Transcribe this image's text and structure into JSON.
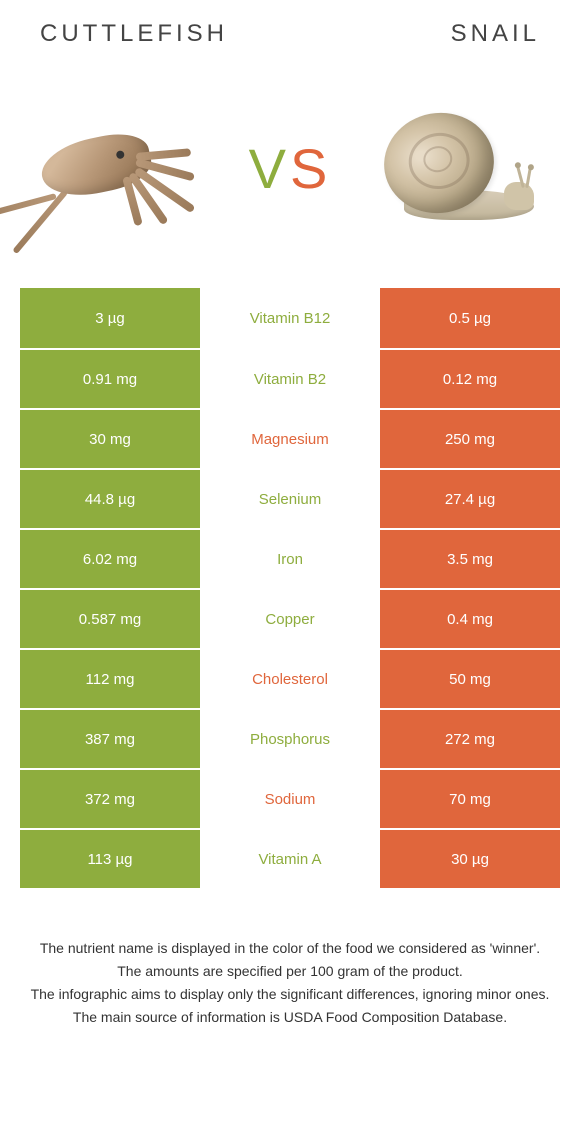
{
  "header": {
    "left_title": "Cuttlefish",
    "right_title": "Snail"
  },
  "vs_label": {
    "v": "V",
    "s": "S"
  },
  "colors": {
    "left": "#8ead3e",
    "right": "#e0663c",
    "background": "#ffffff",
    "text_white": "#ffffff"
  },
  "table": {
    "type": "comparison-table",
    "rows": [
      {
        "left": "3 µg",
        "nutrient": "Vitamin B12",
        "right": "0.5 µg",
        "winner": "left"
      },
      {
        "left": "0.91 mg",
        "nutrient": "Vitamin B2",
        "right": "0.12 mg",
        "winner": "left"
      },
      {
        "left": "30 mg",
        "nutrient": "Magnesium",
        "right": "250 mg",
        "winner": "right"
      },
      {
        "left": "44.8 µg",
        "nutrient": "Selenium",
        "right": "27.4 µg",
        "winner": "left"
      },
      {
        "left": "6.02 mg",
        "nutrient": "Iron",
        "right": "3.5 mg",
        "winner": "left"
      },
      {
        "left": "0.587 mg",
        "nutrient": "Copper",
        "right": "0.4 mg",
        "winner": "left"
      },
      {
        "left": "112 mg",
        "nutrient": "Cholesterol",
        "right": "50 mg",
        "winner": "right"
      },
      {
        "left": "387 mg",
        "nutrient": "Phosphorus",
        "right": "272 mg",
        "winner": "left"
      },
      {
        "left": "372 mg",
        "nutrient": "Sodium",
        "right": "70 mg",
        "winner": "right"
      },
      {
        "left": "113 µg",
        "nutrient": "Vitamin A",
        "right": "30 µg",
        "winner": "left"
      }
    ]
  },
  "footnote": {
    "line1": "The nutrient name is displayed in the color of the food we considered as 'winner'.",
    "line2": "The amounts are specified per 100 gram of the product.",
    "line3": "The infographic aims to display only the significant differences, ignoring minor ones.",
    "line4": "The main source of information is USDA Food Composition Database."
  }
}
